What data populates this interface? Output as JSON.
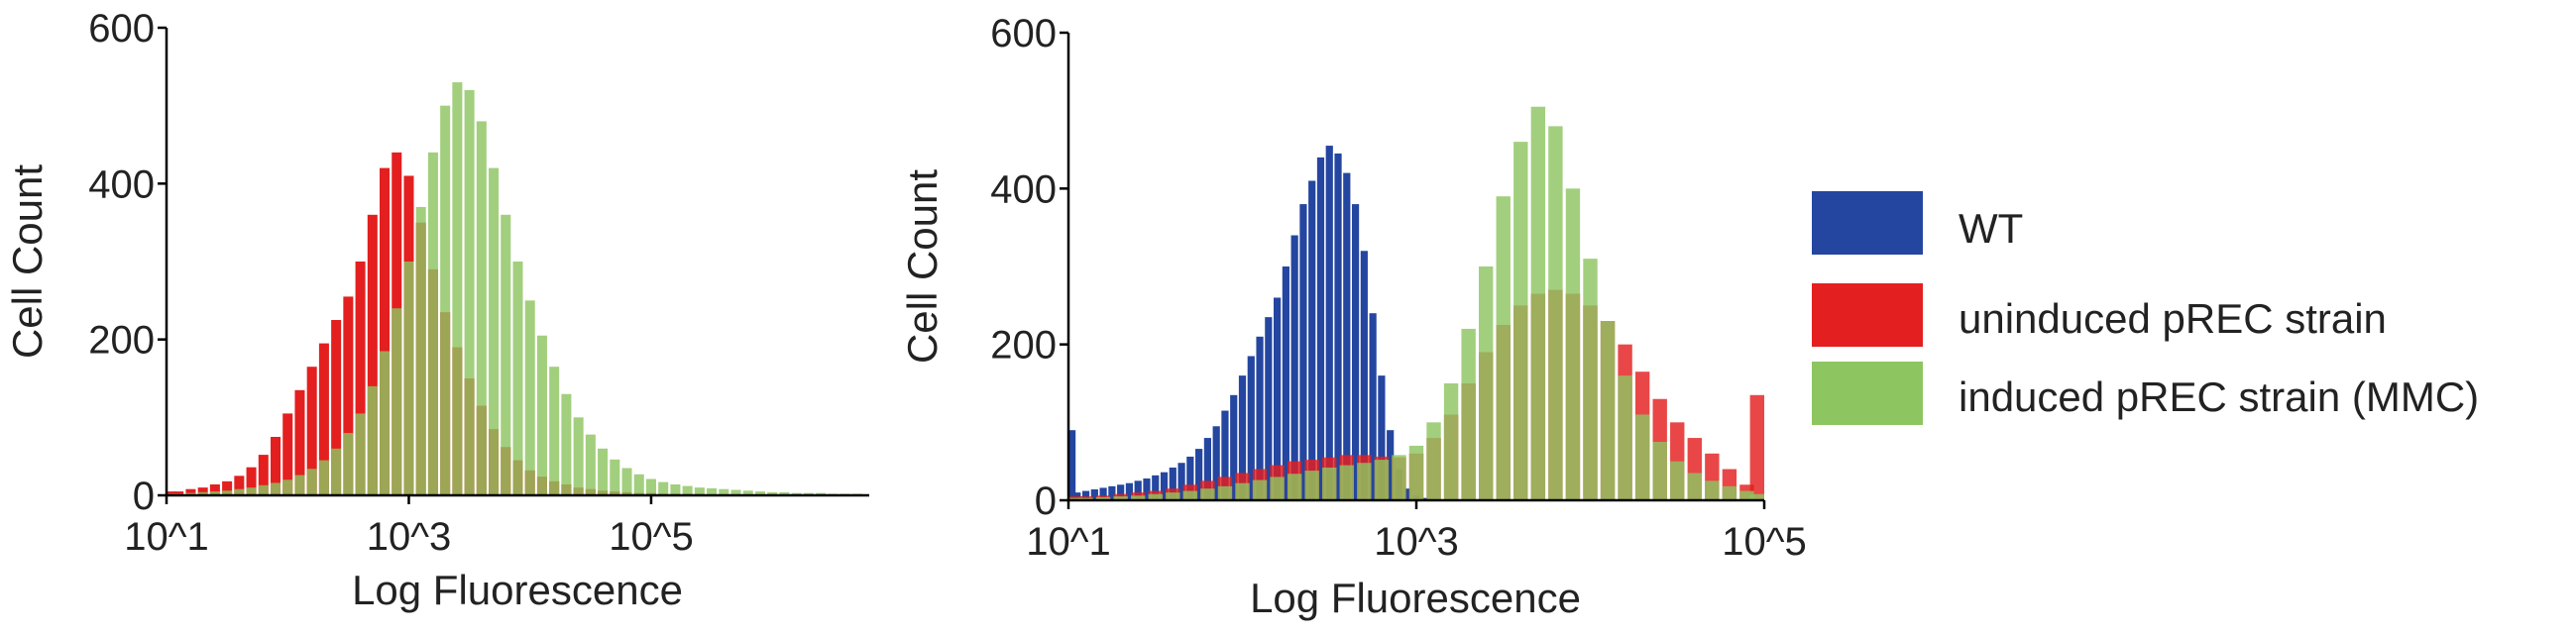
{
  "legend": {
    "items": [
      {
        "label": "WT",
        "color": "#2446A0"
      },
      {
        "label": "uninduced pREC strain",
        "color": "#E41F1F"
      },
      {
        "label": "induced pREC strain (MMC)",
        "color": "#8DC560"
      }
    ]
  },
  "chart_data": [
    {
      "type": "histogram",
      "xlabel": "Log Fluorescence",
      "ylabel": "Cell Count",
      "xscale": "log10",
      "xlim_log10": [
        1,
        6.8
      ],
      "ylim": [
        0,
        600
      ],
      "xtick_labels": [
        "10^1",
        "10^3",
        "10^5"
      ],
      "xticks_log10": [
        1,
        3,
        5
      ],
      "ytick_labels": [
        "0",
        "200",
        "400",
        "600"
      ],
      "yticks": [
        0,
        200,
        400,
        600
      ],
      "grid": false,
      "series": [
        {
          "name": "uninduced pREC strain",
          "color": "#E41F1F",
          "bin_centers_log10": [
            1.0,
            1.1,
            1.2,
            1.3,
            1.4,
            1.5,
            1.6,
            1.7,
            1.8,
            1.9,
            2.0,
            2.1,
            2.2,
            2.3,
            2.4,
            2.5,
            2.6,
            2.7,
            2.8,
            2.9,
            3.0,
            3.1,
            3.2,
            3.3,
            3.4,
            3.5,
            3.6,
            3.7,
            3.8,
            3.9,
            4.0,
            4.1,
            4.2,
            4.3,
            4.4,
            4.5,
            4.6,
            4.7,
            4.8,
            4.9,
            5.0,
            5.1,
            5.2,
            5.3,
            5.4,
            5.5,
            5.6,
            5.7,
            5.8,
            5.9,
            6.0,
            6.1,
            6.2,
            6.3,
            6.4,
            6.5,
            6.6,
            6.7
          ],
          "counts": [
            5,
            5,
            8,
            10,
            14,
            18,
            25,
            36,
            52,
            75,
            105,
            135,
            165,
            195,
            225,
            255,
            300,
            360,
            420,
            440,
            410,
            350,
            290,
            235,
            190,
            150,
            115,
            85,
            62,
            45,
            32,
            24,
            18,
            14,
            10,
            8,
            6,
            5,
            4,
            3,
            3,
            2,
            2,
            2,
            2,
            1,
            1,
            1,
            1,
            1,
            1,
            1,
            1,
            1,
            1,
            1,
            1,
            1
          ]
        },
        {
          "name": "induced pREC strain (MMC)",
          "color": "#8DC560",
          "bin_centers_log10": [
            1.0,
            1.1,
            1.2,
            1.3,
            1.4,
            1.5,
            1.6,
            1.7,
            1.8,
            1.9,
            2.0,
            2.1,
            2.2,
            2.3,
            2.4,
            2.5,
            2.6,
            2.7,
            2.8,
            2.9,
            3.0,
            3.1,
            3.2,
            3.3,
            3.4,
            3.5,
            3.6,
            3.7,
            3.8,
            3.9,
            4.0,
            4.1,
            4.2,
            4.3,
            4.4,
            4.5,
            4.6,
            4.7,
            4.8,
            4.9,
            5.0,
            5.1,
            5.2,
            5.3,
            5.4,
            5.5,
            5.6,
            5.7,
            5.8,
            5.9,
            6.0,
            6.1,
            6.2,
            6.3,
            6.4,
            6.5,
            6.6,
            6.7
          ],
          "counts": [
            2,
            2,
            3,
            4,
            5,
            6,
            8,
            10,
            13,
            16,
            20,
            26,
            34,
            45,
            60,
            80,
            105,
            140,
            185,
            240,
            300,
            370,
            440,
            500,
            530,
            520,
            480,
            420,
            360,
            300,
            250,
            205,
            165,
            130,
            100,
            78,
            60,
            46,
            35,
            27,
            21,
            17,
            14,
            12,
            10,
            9,
            8,
            7,
            6,
            5,
            4,
            4,
            3,
            3,
            3,
            2,
            2,
            2
          ]
        }
      ]
    },
    {
      "type": "histogram",
      "xlabel": "Log Fluorescence",
      "ylabel": "Cell Count",
      "xscale": "log10",
      "xlim_log10": [
        1,
        5
      ],
      "ylim": [
        0,
        600
      ],
      "xtick_labels": [
        "10^1",
        "10^3",
        "10^5"
      ],
      "xticks_log10": [
        1,
        3,
        5
      ],
      "ytick_labels": [
        "0",
        "200",
        "400",
        "600"
      ],
      "yticks": [
        0,
        200,
        400,
        600
      ],
      "grid": false,
      "series": [
        {
          "name": "WT",
          "color": "#2446A0",
          "bin_centers_log10": [
            1.0,
            1.05,
            1.1,
            1.15,
            1.2,
            1.25,
            1.3,
            1.35,
            1.4,
            1.45,
            1.5,
            1.55,
            1.6,
            1.65,
            1.7,
            1.75,
            1.8,
            1.85,
            1.9,
            1.95,
            2.0,
            2.05,
            2.1,
            2.15,
            2.2,
            2.25,
            2.3,
            2.35,
            2.4,
            2.45,
            2.5,
            2.55,
            2.6,
            2.65,
            2.7,
            2.75,
            2.8,
            2.85,
            2.9,
            2.95,
            3.0,
            3.05,
            3.1,
            3.15,
            3.2,
            3.25,
            3.3,
            3.35,
            3.4,
            3.45,
            3.5
          ],
          "counts": [
            90,
            10,
            12,
            14,
            16,
            18,
            20,
            22,
            25,
            28,
            32,
            36,
            42,
            48,
            56,
            66,
            80,
            95,
            115,
            135,
            160,
            185,
            210,
            235,
            260,
            300,
            340,
            380,
            410,
            440,
            455,
            445,
            420,
            380,
            320,
            240,
            160,
            90,
            40,
            15,
            6,
            3,
            2,
            1,
            1,
            1,
            1,
            1,
            1,
            1,
            1
          ]
        },
        {
          "name": "uninduced pREC strain",
          "color": "#E41F1F",
          "bin_centers_log10": [
            1.0,
            1.1,
            1.2,
            1.3,
            1.4,
            1.5,
            1.6,
            1.7,
            1.8,
            1.9,
            2.0,
            2.1,
            2.2,
            2.3,
            2.4,
            2.5,
            2.6,
            2.7,
            2.8,
            2.9,
            3.0,
            3.1,
            3.2,
            3.3,
            3.4,
            3.5,
            3.6,
            3.7,
            3.8,
            3.9,
            4.0,
            4.1,
            4.2,
            4.3,
            4.4,
            4.5,
            4.6,
            4.7,
            4.8,
            4.9,
            5.0
          ],
          "counts": [
            5,
            5,
            6,
            8,
            10,
            12,
            15,
            20,
            25,
            30,
            35,
            40,
            45,
            50,
            52,
            55,
            58,
            58,
            56,
            55,
            60,
            80,
            110,
            150,
            190,
            225,
            250,
            265,
            270,
            265,
            250,
            230,
            200,
            165,
            130,
            100,
            80,
            60,
            40,
            20,
            135
          ]
        },
        {
          "name": "induced pREC strain (MMC)",
          "color": "#8DC560",
          "bin_centers_log10": [
            1.0,
            1.1,
            1.2,
            1.3,
            1.4,
            1.5,
            1.6,
            1.7,
            1.8,
            1.9,
            2.0,
            2.1,
            2.2,
            2.3,
            2.4,
            2.5,
            2.6,
            2.7,
            2.8,
            2.9,
            3.0,
            3.1,
            3.2,
            3.3,
            3.4,
            3.5,
            3.6,
            3.7,
            3.8,
            3.9,
            4.0,
            4.1,
            4.2,
            4.3,
            4.4,
            4.5,
            4.6,
            4.7,
            4.8,
            4.9,
            5.0
          ],
          "counts": [
            3,
            3,
            4,
            5,
            6,
            8,
            10,
            12,
            15,
            18,
            22,
            26,
            30,
            34,
            38,
            42,
            45,
            48,
            52,
            58,
            70,
            100,
            150,
            220,
            300,
            390,
            460,
            505,
            480,
            400,
            310,
            230,
            160,
            110,
            75,
            50,
            35,
            25,
            18,
            12,
            8
          ]
        }
      ]
    }
  ]
}
